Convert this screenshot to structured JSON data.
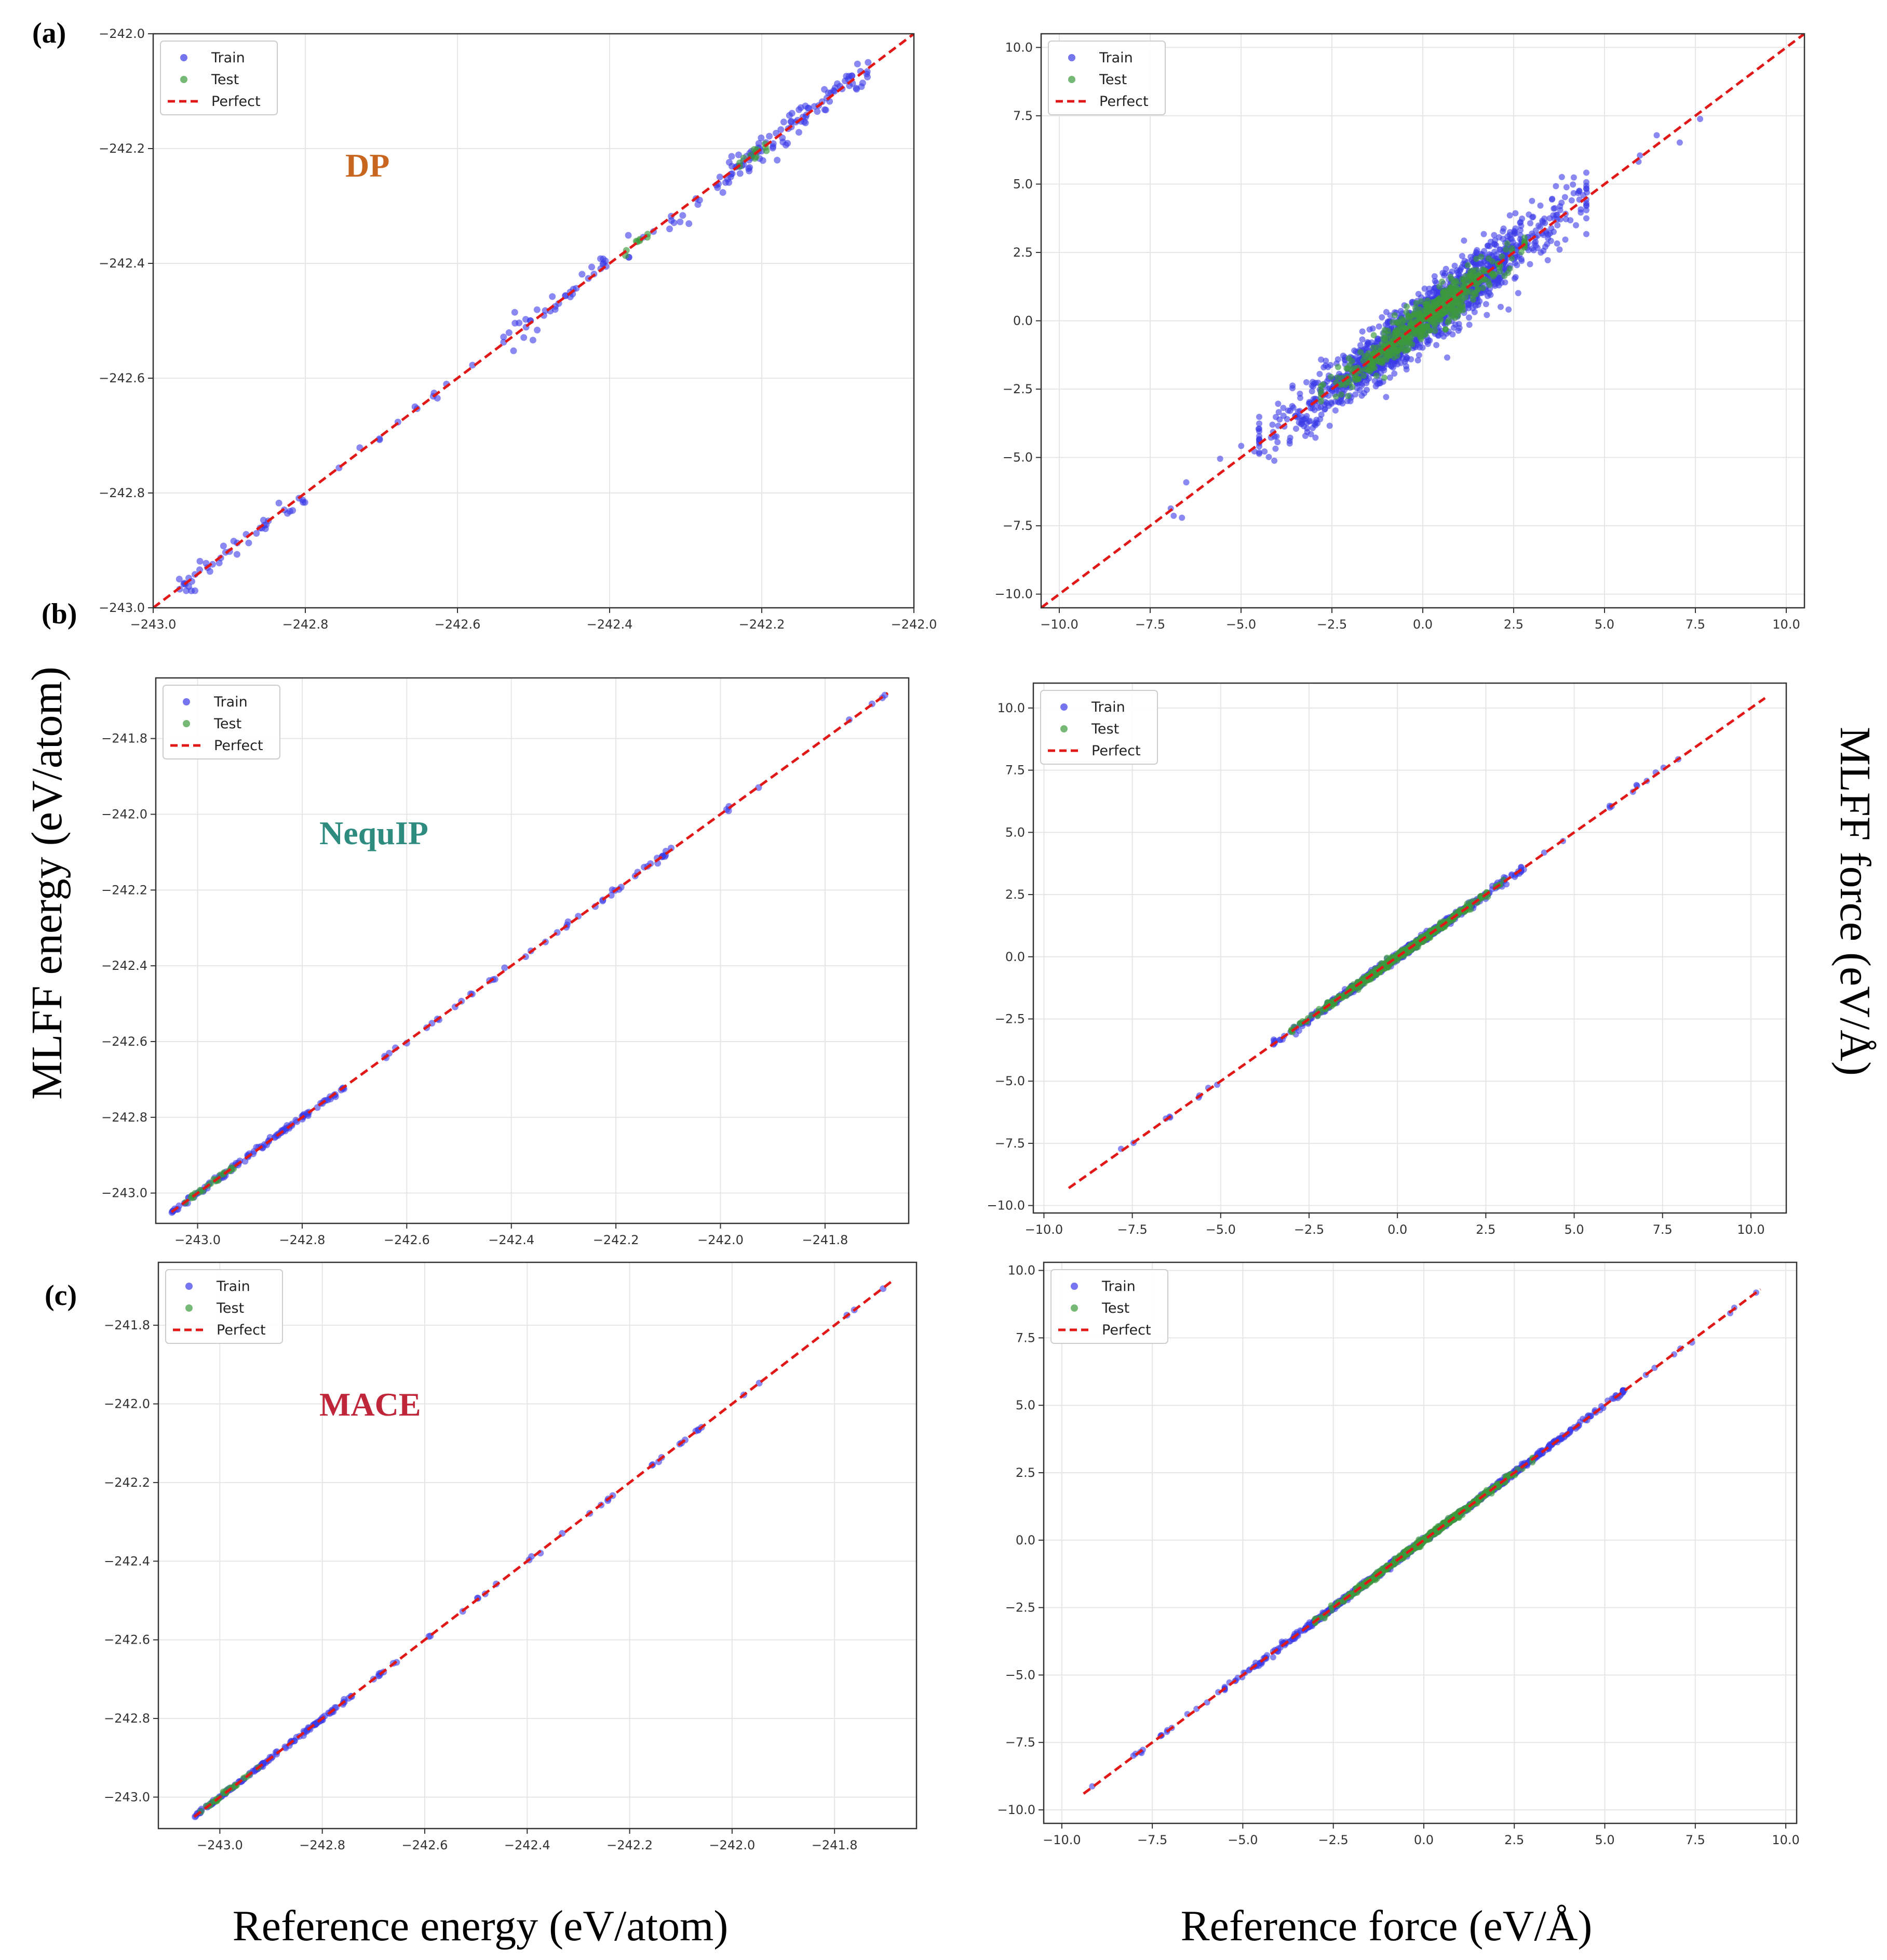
{
  "figure": {
    "panel_labels": [
      "(a)",
      "(b)",
      "(c)"
    ],
    "model_labels": [
      {
        "text": "DP",
        "color": "#c8661f"
      },
      {
        "text": "NequIP",
        "color": "#2e8b7f"
      },
      {
        "text": "MACE",
        "color": "#c0263a"
      }
    ],
    "ylabel_left": "MLFF energy (eV/atom)",
    "ylabel_right": "MLFF force (eV/Å)",
    "xlabel_left": "Reference energy (eV/atom)",
    "xlabel_right": "Reference force (eV/Å)",
    "legend": [
      "Train",
      "Test",
      "Perfect"
    ],
    "colors": {
      "train": "#3a3ae8",
      "test": "#3c9a3c",
      "perfect": "#e01818",
      "grid": "#e6e6e6"
    }
  },
  "chart_data": [
    {
      "id": "a-energy",
      "type": "scatter",
      "title": "",
      "xlabel": "Reference energy (eV/atom)",
      "ylabel": "MLFF energy (eV/atom)",
      "xlim": [
        -243.0,
        -242.0
      ],
      "ylim": [
        -243.0,
        -242.0
      ],
      "xticks": [
        -243.0,
        -242.8,
        -242.6,
        -242.4,
        -242.2,
        -242.0
      ],
      "yticks": [
        -243.0,
        -242.8,
        -242.6,
        -242.4,
        -242.2,
        -242.0
      ],
      "xtick_labels": [
        "−243.0",
        "−242.8",
        "−242.6",
        "−242.4",
        "−242.2",
        "−242.0"
      ],
      "ytick_labels": [
        "−243.0",
        "−242.8",
        "−242.6",
        "−242.4",
        "−242.2",
        "−242.0"
      ],
      "perfect": [
        [
          -243.0,
          -243.0
        ],
        [
          -242.0,
          -242.0
        ]
      ],
      "series": [
        {
          "name": "Train",
          "clusters": [
            {
              "from": -242.97,
              "to": -242.8,
              "n": 45,
              "spread": 0.01
            },
            {
              "from": -242.78,
              "to": -242.58,
              "n": 12,
              "spread": 0.008
            },
            {
              "from": -242.54,
              "to": -242.4,
              "n": 40,
              "spread": 0.012
            },
            {
              "from": -242.38,
              "to": -242.28,
              "n": 15,
              "spread": 0.01
            },
            {
              "from": -242.26,
              "to": -242.06,
              "n": 110,
              "spread": 0.012
            }
          ]
        },
        {
          "name": "Test",
          "clusters": [
            {
              "from": -242.38,
              "to": -242.35,
              "n": 8,
              "spread": 0.006
            },
            {
              "from": -242.23,
              "to": -242.18,
              "n": 12,
              "spread": 0.006
            }
          ]
        }
      ]
    },
    {
      "id": "a-force",
      "type": "scatter",
      "title": "",
      "xlabel": "Reference force (eV/Å)",
      "ylabel": "MLFF force (eV/Å)",
      "xlim": [
        -10.5,
        10.5
      ],
      "ylim": [
        -10.5,
        10.5
      ],
      "xticks": [
        -10.0,
        -7.5,
        -5.0,
        -2.5,
        0.0,
        2.5,
        5.0,
        7.5,
        10.0
      ],
      "yticks": [
        -10.0,
        -7.5,
        -5.0,
        -2.5,
        0.0,
        2.5,
        5.0,
        7.5,
        10.0
      ],
      "xtick_labels": [
        "−10.0",
        "−7.5",
        "−5.0",
        "−2.5",
        "0.0",
        "2.5",
        "5.0",
        "7.5",
        "10.0"
      ],
      "ytick_labels": [
        "−10.0",
        "−7.5",
        "−5.0",
        "−2.5",
        "0.0",
        "2.5",
        "5.0",
        "7.5",
        "10.0"
      ],
      "perfect": [
        [
          -10.5,
          -10.5
        ],
        [
          10.5,
          10.5
        ]
      ],
      "series": [
        {
          "name": "Train",
          "clusters": [
            {
              "from": -4.5,
              "to": 4.5,
              "n": 1400,
              "spread": 0.55
            },
            {
              "from": -7.0,
              "to": 7.7,
              "n": 40,
              "spread": 0.35
            }
          ]
        },
        {
          "name": "Test",
          "clusters": [
            {
              "from": -2.8,
              "to": 2.8,
              "n": 550,
              "spread": 0.35
            }
          ]
        }
      ]
    },
    {
      "id": "b-energy",
      "type": "scatter",
      "title": "",
      "xlabel": "Reference energy (eV/atom)",
      "ylabel": "MLFF energy (eV/atom)",
      "xlim": [
        -243.08,
        -241.64
      ],
      "ylim": [
        -243.08,
        -241.64
      ],
      "xticks": [
        -243.0,
        -242.8,
        -242.6,
        -242.4,
        -242.2,
        -242.0,
        -241.8
      ],
      "yticks": [
        -243.0,
        -242.8,
        -242.6,
        -242.4,
        -242.2,
        -242.0,
        -241.8
      ],
      "xtick_labels": [
        "−243.0",
        "−242.8",
        "−242.6",
        "−242.4",
        "−242.2",
        "−242.0",
        "−241.8"
      ],
      "ytick_labels": [
        "−243.0",
        "−242.8",
        "−242.6",
        "−242.4",
        "−242.2",
        "−242.0",
        "−241.8"
      ],
      "perfect": [
        [
          -243.05,
          -243.05
        ],
        [
          -241.68,
          -241.68
        ]
      ],
      "series": [
        {
          "name": "Train",
          "clusters": [
            {
              "from": -243.05,
              "to": -242.72,
              "n": 110,
              "spread": 0.004
            },
            {
              "from": -242.7,
              "to": -242.25,
              "n": 25,
              "spread": 0.004
            },
            {
              "from": -242.24,
              "to": -242.08,
              "n": 22,
              "spread": 0.004
            },
            {
              "from": -242.05,
              "to": -241.68,
              "n": 8,
              "spread": 0.004
            }
          ]
        },
        {
          "name": "Test",
          "clusters": [
            {
              "from": -243.04,
              "to": -242.93,
              "n": 22,
              "spread": 0.003
            }
          ]
        }
      ]
    },
    {
      "id": "b-force",
      "type": "scatter",
      "title": "",
      "xlabel": "Reference force (eV/Å)",
      "ylabel": "MLFF force (eV/Å)",
      "xlim": [
        -10.3,
        11.0
      ],
      "ylim": [
        -10.3,
        11.0
      ],
      "xticks": [
        -10.0,
        -7.5,
        -5.0,
        -2.5,
        0.0,
        2.5,
        5.0,
        7.5,
        10.0
      ],
      "yticks": [
        -10.0,
        -7.5,
        -5.0,
        -2.5,
        0.0,
        2.5,
        5.0,
        7.5,
        10.0
      ],
      "xtick_labels": [
        "−10.0",
        "−7.5",
        "−5.0",
        "−2.5",
        "0.0",
        "2.5",
        "5.0",
        "7.5",
        "10.0"
      ],
      "ytick_labels": [
        "−10.0",
        "−7.5",
        "−5.0",
        "−2.5",
        "0.0",
        "2.5",
        "5.0",
        "7.5",
        "10.0"
      ],
      "perfect": [
        [
          -9.3,
          -9.3
        ],
        [
          10.4,
          10.4
        ]
      ],
      "series": [
        {
          "name": "Train",
          "clusters": [
            {
              "from": -3.5,
              "to": 3.5,
              "n": 700,
              "spread": 0.08
            },
            {
              "from": -8.0,
              "to": 8.0,
              "n": 40,
              "spread": 0.06
            }
          ]
        },
        {
          "name": "Test",
          "clusters": [
            {
              "from": -3.0,
              "to": 3.0,
              "n": 500,
              "spread": 0.07
            }
          ]
        }
      ]
    },
    {
      "id": "c-energy",
      "type": "scatter",
      "title": "",
      "xlabel": "Reference energy (eV/atom)",
      "ylabel": "MLFF energy (eV/atom)",
      "xlim": [
        -243.12,
        -241.64
      ],
      "ylim": [
        -243.08,
        -241.64
      ],
      "xticks": [
        -243.0,
        -242.8,
        -242.6,
        -242.4,
        -242.2,
        -242.0,
        -241.8
      ],
      "yticks": [
        -243.0,
        -242.8,
        -242.6,
        -242.4,
        -242.2,
        -242.0,
        -241.8
      ],
      "xtick_labels": [
        "−243.0",
        "−242.8",
        "−242.6",
        "−242.4",
        "−242.2",
        "−242.0",
        "−241.8"
      ],
      "ytick_labels": [
        "−243.0",
        "−242.8",
        "−242.6",
        "−242.4",
        "−242.2",
        "−242.0",
        "−241.8"
      ],
      "perfect": [
        [
          -243.05,
          -243.05
        ],
        [
          -241.69,
          -241.69
        ]
      ],
      "series": [
        {
          "name": "Train",
          "clusters": [
            {
              "from": -243.05,
              "to": -242.74,
              "n": 120,
              "spread": 0.002
            },
            {
              "from": -242.72,
              "to": -241.69,
              "n": 40,
              "spread": 0.002
            }
          ]
        },
        {
          "name": "Test",
          "clusters": [
            {
              "from": -243.04,
              "to": -242.92,
              "n": 25,
              "spread": 0.002
            }
          ]
        }
      ]
    },
    {
      "id": "c-force",
      "type": "scatter",
      "title": "",
      "xlabel": "Reference force (eV/Å)",
      "ylabel": "MLFF force (eV/Å)",
      "xlim": [
        -10.5,
        10.3
      ],
      "ylim": [
        -10.5,
        10.3
      ],
      "xticks": [
        -10.0,
        -7.5,
        -5.0,
        -2.5,
        0.0,
        2.5,
        5.0,
        7.5,
        10.0
      ],
      "yticks": [
        -10.0,
        -7.5,
        -5.0,
        -2.5,
        0.0,
        2.5,
        5.0,
        7.5,
        10.0
      ],
      "xtick_labels": [
        "−10.0",
        "−7.5",
        "−5.0",
        "−2.5",
        "0.0",
        "2.5",
        "5.0",
        "7.5",
        "10.0"
      ],
      "ytick_labels": [
        "−10.0",
        "−7.5",
        "−5.0",
        "−2.5",
        "0.0",
        "2.5",
        "5.0",
        "7.5",
        "10.0"
      ],
      "perfect": [
        [
          -9.4,
          -9.4
        ],
        [
          9.3,
          9.3
        ]
      ],
      "series": [
        {
          "name": "Train",
          "clusters": [
            {
              "from": -5.5,
              "to": 5.5,
              "n": 900,
              "spread": 0.05
            },
            {
              "from": -9.4,
              "to": 9.3,
              "n": 60,
              "spread": 0.04
            }
          ]
        },
        {
          "name": "Test",
          "clusters": [
            {
              "from": -3.0,
              "to": 3.0,
              "n": 600,
              "spread": 0.05
            }
          ]
        }
      ]
    }
  ]
}
